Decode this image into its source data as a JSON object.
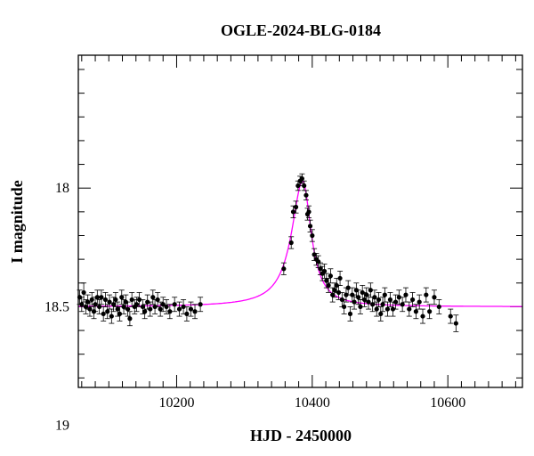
{
  "chart_data": {
    "type": "scatter",
    "title": "OGLE-2024-BLG-0184",
    "xlabel": "HJD - 2450000",
    "ylabel": "I magnitude",
    "xlim": [
      10055,
      10710
    ],
    "ylim": [
      18.84,
      17.44
    ],
    "y_inverted": true,
    "x_major_ticks": [
      10200,
      10400,
      10600
    ],
    "y_major_ticks": [
      18,
      18.5,
      19
    ],
    "y_tick_labels": [
      "18",
      "18.5",
      "19"
    ],
    "x_tick_labels": [
      "10200",
      "10400",
      "10600"
    ],
    "x_minor_step": 20,
    "y_minor_step": 0.1,
    "grid": false,
    "series": [
      {
        "kind": "photometry",
        "color": "#000000",
        "points": [
          {
            "x": 10057,
            "y": 18.46,
            "err": 0.03
          },
          {
            "x": 10060,
            "y": 18.49,
            "err": 0.03
          },
          {
            "x": 10063,
            "y": 18.44,
            "err": 0.04
          },
          {
            "x": 10066,
            "y": 18.5,
            "err": 0.03
          },
          {
            "x": 10069,
            "y": 18.48,
            "err": 0.03
          },
          {
            "x": 10072,
            "y": 18.51,
            "err": 0.03
          },
          {
            "x": 10075,
            "y": 18.47,
            "err": 0.03
          },
          {
            "x": 10078,
            "y": 18.52,
            "err": 0.03
          },
          {
            "x": 10080,
            "y": 18.49,
            "err": 0.03
          },
          {
            "x": 10083,
            "y": 18.46,
            "err": 0.03
          },
          {
            "x": 10086,
            "y": 18.5,
            "err": 0.03
          },
          {
            "x": 10089,
            "y": 18.46,
            "err": 0.03
          },
          {
            "x": 10092,
            "y": 18.53,
            "err": 0.03
          },
          {
            "x": 10095,
            "y": 18.47,
            "err": 0.03
          },
          {
            "x": 10098,
            "y": 18.52,
            "err": 0.03
          },
          {
            "x": 10101,
            "y": 18.48,
            "err": 0.03
          },
          {
            "x": 10104,
            "y": 18.54,
            "err": 0.03
          },
          {
            "x": 10107,
            "y": 18.49,
            "err": 0.03
          },
          {
            "x": 10110,
            "y": 18.47,
            "err": 0.03
          },
          {
            "x": 10113,
            "y": 18.51,
            "err": 0.03
          },
          {
            "x": 10116,
            "y": 18.53,
            "err": 0.03
          },
          {
            "x": 10119,
            "y": 18.46,
            "err": 0.03
          },
          {
            "x": 10122,
            "y": 18.5,
            "err": 0.03
          },
          {
            "x": 10125,
            "y": 18.48,
            "err": 0.03
          },
          {
            "x": 10128,
            "y": 18.51,
            "err": 0.03
          },
          {
            "x": 10131,
            "y": 18.55,
            "err": 0.03
          },
          {
            "x": 10134,
            "y": 18.47,
            "err": 0.03
          },
          {
            "x": 10138,
            "y": 18.5,
            "err": 0.03
          },
          {
            "x": 10141,
            "y": 18.49,
            "err": 0.03
          },
          {
            "x": 10145,
            "y": 18.47,
            "err": 0.03
          },
          {
            "x": 10150,
            "y": 18.5,
            "err": 0.03
          },
          {
            "x": 10153,
            "y": 18.52,
            "err": 0.03
          },
          {
            "x": 10157,
            "y": 18.48,
            "err": 0.03
          },
          {
            "x": 10161,
            "y": 18.51,
            "err": 0.03
          },
          {
            "x": 10165,
            "y": 18.46,
            "err": 0.03
          },
          {
            "x": 10168,
            "y": 18.5,
            "err": 0.03
          },
          {
            "x": 10172,
            "y": 18.47,
            "err": 0.03
          },
          {
            "x": 10176,
            "y": 18.51,
            "err": 0.03
          },
          {
            "x": 10180,
            "y": 18.49,
            "err": 0.03
          },
          {
            "x": 10185,
            "y": 18.5,
            "err": 0.03
          },
          {
            "x": 10190,
            "y": 18.52,
            "err": 0.03
          },
          {
            "x": 10197,
            "y": 18.49,
            "err": 0.03
          },
          {
            "x": 10204,
            "y": 18.51,
            "err": 0.03
          },
          {
            "x": 10210,
            "y": 18.5,
            "err": 0.03
          },
          {
            "x": 10215,
            "y": 18.53,
            "err": 0.03
          },
          {
            "x": 10221,
            "y": 18.51,
            "err": 0.03
          },
          {
            "x": 10227,
            "y": 18.52,
            "err": 0.03
          },
          {
            "x": 10235,
            "y": 18.49,
            "err": 0.03
          },
          {
            "x": 10358,
            "y": 18.34,
            "err": 0.025
          },
          {
            "x": 10369,
            "y": 18.23,
            "err": 0.025
          },
          {
            "x": 10372,
            "y": 18.1,
            "err": 0.025
          },
          {
            "x": 10376,
            "y": 18.08,
            "err": 0.025
          },
          {
            "x": 10379,
            "y": 17.99,
            "err": 0.02
          },
          {
            "x": 10382,
            "y": 17.97,
            "err": 0.02
          },
          {
            "x": 10385,
            "y": 17.96,
            "err": 0.02
          },
          {
            "x": 10388,
            "y": 17.99,
            "err": 0.02
          },
          {
            "x": 10391,
            "y": 18.03,
            "err": 0.02
          },
          {
            "x": 10393,
            "y": 18.11,
            "err": 0.025
          },
          {
            "x": 10395,
            "y": 18.1,
            "err": 0.025
          },
          {
            "x": 10397,
            "y": 18.16,
            "err": 0.025
          },
          {
            "x": 10400,
            "y": 18.2,
            "err": 0.025
          },
          {
            "x": 10403,
            "y": 18.28,
            "err": 0.025
          },
          {
            "x": 10406,
            "y": 18.3,
            "err": 0.025
          },
          {
            "x": 10409,
            "y": 18.31,
            "err": 0.025
          },
          {
            "x": 10412,
            "y": 18.34,
            "err": 0.025
          },
          {
            "x": 10415,
            "y": 18.36,
            "err": 0.03
          },
          {
            "x": 10418,
            "y": 18.35,
            "err": 0.03
          },
          {
            "x": 10421,
            "y": 18.39,
            "err": 0.03
          },
          {
            "x": 10424,
            "y": 18.41,
            "err": 0.03
          },
          {
            "x": 10427,
            "y": 18.37,
            "err": 0.03
          },
          {
            "x": 10430,
            "y": 18.45,
            "err": 0.03
          },
          {
            "x": 10433,
            "y": 18.43,
            "err": 0.03
          },
          {
            "x": 10436,
            "y": 18.41,
            "err": 0.03
          },
          {
            "x": 10439,
            "y": 18.44,
            "err": 0.03
          },
          {
            "x": 10441,
            "y": 18.38,
            "err": 0.03
          },
          {
            "x": 10444,
            "y": 18.47,
            "err": 0.03
          },
          {
            "x": 10447,
            "y": 18.5,
            "err": 0.03
          },
          {
            "x": 10450,
            "y": 18.45,
            "err": 0.03
          },
          {
            "x": 10453,
            "y": 18.42,
            "err": 0.03
          },
          {
            "x": 10456,
            "y": 18.53,
            "err": 0.03
          },
          {
            "x": 10459,
            "y": 18.45,
            "err": 0.03
          },
          {
            "x": 10462,
            "y": 18.48,
            "err": 0.03
          },
          {
            "x": 10465,
            "y": 18.43,
            "err": 0.03
          },
          {
            "x": 10468,
            "y": 18.46,
            "err": 0.03
          },
          {
            "x": 10471,
            "y": 18.5,
            "err": 0.03
          },
          {
            "x": 10474,
            "y": 18.44,
            "err": 0.03
          },
          {
            "x": 10477,
            "y": 18.47,
            "err": 0.03
          },
          {
            "x": 10480,
            "y": 18.45,
            "err": 0.03
          },
          {
            "x": 10483,
            "y": 18.48,
            "err": 0.03
          },
          {
            "x": 10486,
            "y": 18.43,
            "err": 0.03
          },
          {
            "x": 10489,
            "y": 18.49,
            "err": 0.03
          },
          {
            "x": 10492,
            "y": 18.46,
            "err": 0.03
          },
          {
            "x": 10495,
            "y": 18.51,
            "err": 0.03
          },
          {
            "x": 10498,
            "y": 18.47,
            "err": 0.03
          },
          {
            "x": 10501,
            "y": 18.53,
            "err": 0.03
          },
          {
            "x": 10504,
            "y": 18.49,
            "err": 0.03
          },
          {
            "x": 10507,
            "y": 18.45,
            "err": 0.03
          },
          {
            "x": 10511,
            "y": 18.51,
            "err": 0.03
          },
          {
            "x": 10515,
            "y": 18.47,
            "err": 0.03
          },
          {
            "x": 10519,
            "y": 18.51,
            "err": 0.03
          },
          {
            "x": 10523,
            "y": 18.48,
            "err": 0.03
          },
          {
            "x": 10528,
            "y": 18.46,
            "err": 0.03
          },
          {
            "x": 10533,
            "y": 18.49,
            "err": 0.03
          },
          {
            "x": 10538,
            "y": 18.45,
            "err": 0.03
          },
          {
            "x": 10543,
            "y": 18.51,
            "err": 0.03
          },
          {
            "x": 10548,
            "y": 18.47,
            "err": 0.03
          },
          {
            "x": 10553,
            "y": 18.52,
            "err": 0.03
          },
          {
            "x": 10558,
            "y": 18.48,
            "err": 0.03
          },
          {
            "x": 10563,
            "y": 18.54,
            "err": 0.03
          },
          {
            "x": 10568,
            "y": 18.45,
            "err": 0.03
          },
          {
            "x": 10573,
            "y": 18.52,
            "err": 0.03
          },
          {
            "x": 10580,
            "y": 18.46,
            "err": 0.03
          },
          {
            "x": 10587,
            "y": 18.5,
            "err": 0.03
          },
          {
            "x": 10604,
            "y": 18.54,
            "err": 0.03
          },
          {
            "x": 10612,
            "y": 18.57,
            "err": 0.035
          }
        ]
      },
      {
        "kind": "model",
        "color": "#ff00ff",
        "t0": 10386,
        "baseline": 18.5,
        "peak": 17.97,
        "width_rise": 20,
        "width_fall": 15
      }
    ]
  }
}
